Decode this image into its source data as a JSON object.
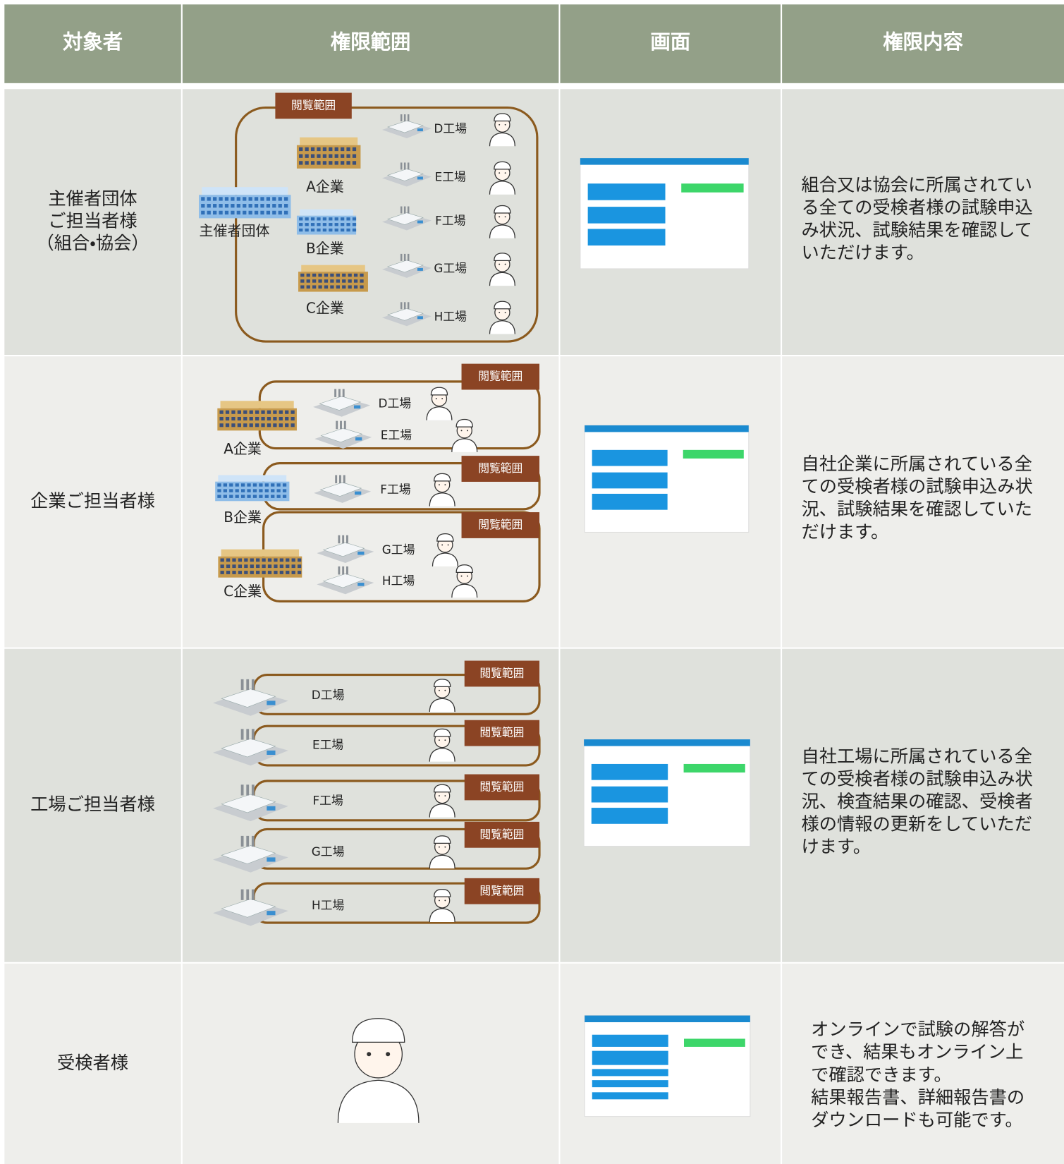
{
  "header": {
    "columns": [
      "対象者",
      "権限範囲",
      "画面",
      "権限内容"
    ]
  },
  "rows": [
    {
      "audience": [
        "主催者団体",
        "ご担当者様",
        "（組合・協会）"
      ],
      "scope": {
        "label": "閲覧範囲",
        "organization": "主催者団体",
        "companies": [
          "A企業",
          "B企業",
          "C企業"
        ],
        "factories": [
          "D工場",
          "E工場",
          "F工場",
          "G工場",
          "H工場"
        ]
      },
      "description": [
        "組合又は協会に所属されてい",
        "る全ての受検者様の試験申込",
        "み状況、試験結果を確認して",
        "いただけます。"
      ]
    },
    {
      "audience": [
        "企業ご担当者様"
      ],
      "scope": {
        "groups": [
          {
            "label": "閲覧範囲",
            "company": "A企業",
            "factories": [
              "D工場",
              "E工場"
            ]
          },
          {
            "label": "閲覧範囲",
            "company": "B企業",
            "factories": [
              "F工場"
            ]
          },
          {
            "label": "閲覧範囲",
            "company": "C企業",
            "factories": [
              "G工場",
              "H工場"
            ]
          }
        ]
      },
      "description": [
        "自社企業に所属されている全",
        "ての受検者様の試験申込み状",
        "況、試験結果を確認していた",
        "だけます。"
      ]
    },
    {
      "audience": [
        "工場ご担当者様"
      ],
      "scope": {
        "groups": [
          {
            "label": "閲覧範囲",
            "factory": "D工場"
          },
          {
            "label": "閲覧範囲",
            "factory": "E工場"
          },
          {
            "label": "閲覧範囲",
            "factory": "F工場"
          },
          {
            "label": "閲覧範囲",
            "factory": "G工場"
          },
          {
            "label": "閲覧範囲",
            "factory": "H工場"
          }
        ]
      },
      "description": [
        "自社工場に所属されている全",
        "ての受検者様の試験申込み状",
        "況、検査結果の確認、受検者",
        "様の情報の更新をしていただ",
        "けます。"
      ]
    },
    {
      "audience": [
        "受検者様"
      ],
      "description": [
        "オンラインで試験の解答が",
        "でき、結果もオンライン上",
        "で確認できます。",
        "結果報告書、詳細報告書の",
        "ダウンロードも可能です。"
      ]
    }
  ]
}
